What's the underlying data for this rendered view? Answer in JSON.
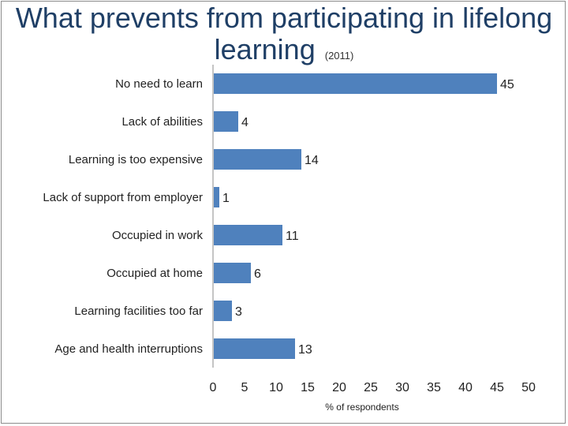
{
  "title": {
    "main_line1": "What prevents from participating in lifelong",
    "main_line2": "learning",
    "year": "(2011)"
  },
  "chart_data": {
    "type": "bar",
    "orientation": "horizontal",
    "categories": [
      "No need to learn",
      "Lack of abilities",
      "Learning is too expensive",
      "Lack of support from employer",
      "Occupied in work",
      "Occupied at home",
      "Learning facilities too far",
      "Age and health interruptions"
    ],
    "values": [
      45,
      4,
      14,
      1,
      11,
      6,
      3,
      13
    ],
    "xlabel": "% of respondents",
    "ylabel": "",
    "xlim": [
      0,
      50
    ],
    "xticks": [
      0,
      5,
      10,
      15,
      20,
      25,
      30,
      35,
      40,
      45,
      50
    ],
    "bar_color": "#4f81bd",
    "grid": false,
    "legend": "none",
    "data_labels": true
  }
}
